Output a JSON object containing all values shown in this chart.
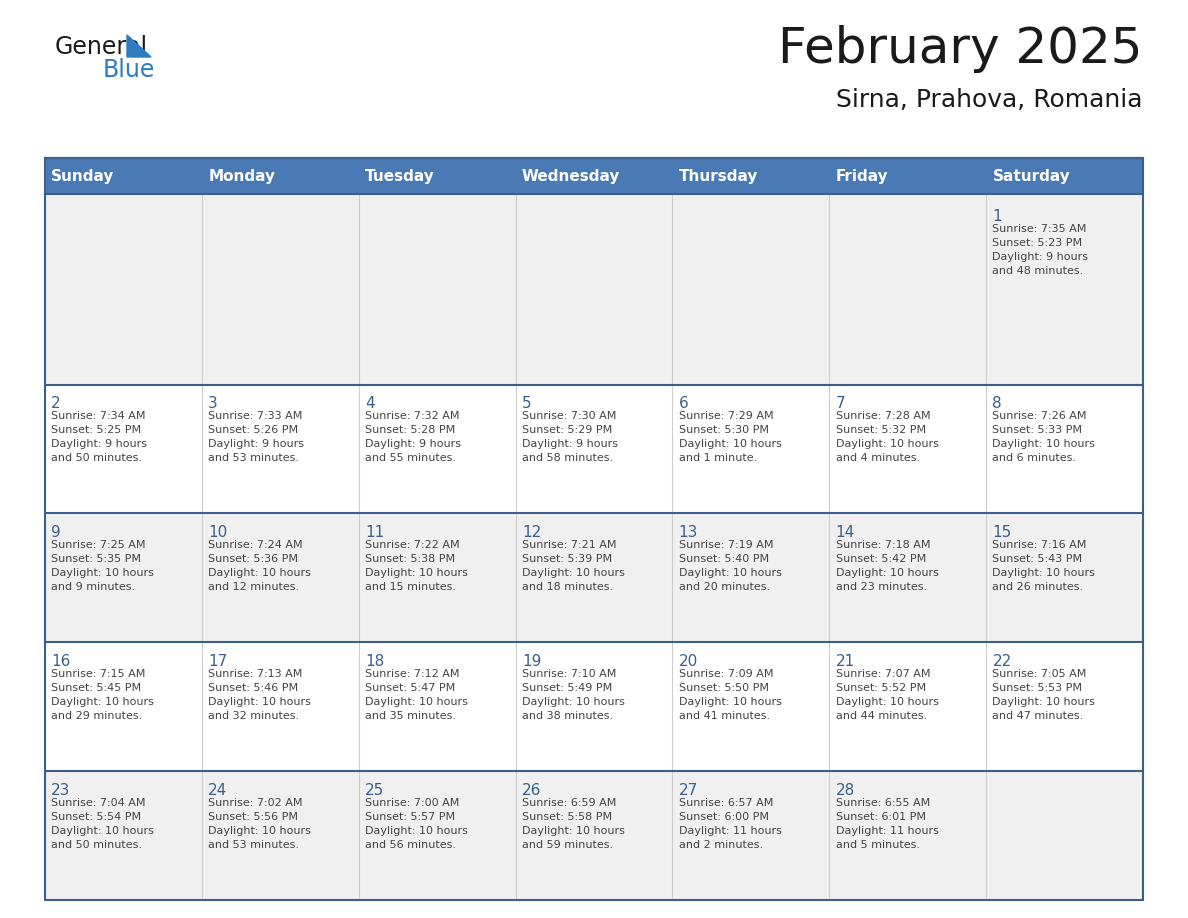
{
  "title": "February 2025",
  "subtitle": "Sirna, Prahova, Romania",
  "days_of_week": [
    "Sunday",
    "Monday",
    "Tuesday",
    "Wednesday",
    "Thursday",
    "Friday",
    "Saturday"
  ],
  "header_bg": "#4a7ab5",
  "header_text_color": "#ffffff",
  "cell_bg_odd": "#f0f0f0",
  "cell_bg_even": "#ffffff",
  "border_color": "#3a5f8a",
  "day_number_color": "#3a5f8a",
  "text_color": "#444444",
  "title_color": "#1a1a1a",
  "logo_general_color": "#1a1a1a",
  "logo_blue_color": "#2d7cc1",
  "calendar_data": [
    {
      "day": 1,
      "row": 0,
      "col": 6,
      "sunrise": "7:35 AM",
      "sunset": "5:23 PM",
      "daylight": "9 hours and 48 minutes."
    },
    {
      "day": 2,
      "row": 1,
      "col": 0,
      "sunrise": "7:34 AM",
      "sunset": "5:25 PM",
      "daylight": "9 hours and 50 minutes."
    },
    {
      "day": 3,
      "row": 1,
      "col": 1,
      "sunrise": "7:33 AM",
      "sunset": "5:26 PM",
      "daylight": "9 hours and 53 minutes."
    },
    {
      "day": 4,
      "row": 1,
      "col": 2,
      "sunrise": "7:32 AM",
      "sunset": "5:28 PM",
      "daylight": "9 hours and 55 minutes."
    },
    {
      "day": 5,
      "row": 1,
      "col": 3,
      "sunrise": "7:30 AM",
      "sunset": "5:29 PM",
      "daylight": "9 hours and 58 minutes."
    },
    {
      "day": 6,
      "row": 1,
      "col": 4,
      "sunrise": "7:29 AM",
      "sunset": "5:30 PM",
      "daylight": "10 hours and 1 minute."
    },
    {
      "day": 7,
      "row": 1,
      "col": 5,
      "sunrise": "7:28 AM",
      "sunset": "5:32 PM",
      "daylight": "10 hours and 4 minutes."
    },
    {
      "day": 8,
      "row": 1,
      "col": 6,
      "sunrise": "7:26 AM",
      "sunset": "5:33 PM",
      "daylight": "10 hours and 6 minutes."
    },
    {
      "day": 9,
      "row": 2,
      "col": 0,
      "sunrise": "7:25 AM",
      "sunset": "5:35 PM",
      "daylight": "10 hours and 9 minutes."
    },
    {
      "day": 10,
      "row": 2,
      "col": 1,
      "sunrise": "7:24 AM",
      "sunset": "5:36 PM",
      "daylight": "10 hours and 12 minutes."
    },
    {
      "day": 11,
      "row": 2,
      "col": 2,
      "sunrise": "7:22 AM",
      "sunset": "5:38 PM",
      "daylight": "10 hours and 15 minutes."
    },
    {
      "day": 12,
      "row": 2,
      "col": 3,
      "sunrise": "7:21 AM",
      "sunset": "5:39 PM",
      "daylight": "10 hours and 18 minutes."
    },
    {
      "day": 13,
      "row": 2,
      "col": 4,
      "sunrise": "7:19 AM",
      "sunset": "5:40 PM",
      "daylight": "10 hours and 20 minutes."
    },
    {
      "day": 14,
      "row": 2,
      "col": 5,
      "sunrise": "7:18 AM",
      "sunset": "5:42 PM",
      "daylight": "10 hours and 23 minutes."
    },
    {
      "day": 15,
      "row": 2,
      "col": 6,
      "sunrise": "7:16 AM",
      "sunset": "5:43 PM",
      "daylight": "10 hours and 26 minutes."
    },
    {
      "day": 16,
      "row": 3,
      "col": 0,
      "sunrise": "7:15 AM",
      "sunset": "5:45 PM",
      "daylight": "10 hours and 29 minutes."
    },
    {
      "day": 17,
      "row": 3,
      "col": 1,
      "sunrise": "7:13 AM",
      "sunset": "5:46 PM",
      "daylight": "10 hours and 32 minutes."
    },
    {
      "day": 18,
      "row": 3,
      "col": 2,
      "sunrise": "7:12 AM",
      "sunset": "5:47 PM",
      "daylight": "10 hours and 35 minutes."
    },
    {
      "day": 19,
      "row": 3,
      "col": 3,
      "sunrise": "7:10 AM",
      "sunset": "5:49 PM",
      "daylight": "10 hours and 38 minutes."
    },
    {
      "day": 20,
      "row": 3,
      "col": 4,
      "sunrise": "7:09 AM",
      "sunset": "5:50 PM",
      "daylight": "10 hours and 41 minutes."
    },
    {
      "day": 21,
      "row": 3,
      "col": 5,
      "sunrise": "7:07 AM",
      "sunset": "5:52 PM",
      "daylight": "10 hours and 44 minutes."
    },
    {
      "day": 22,
      "row": 3,
      "col": 6,
      "sunrise": "7:05 AM",
      "sunset": "5:53 PM",
      "daylight": "10 hours and 47 minutes."
    },
    {
      "day": 23,
      "row": 4,
      "col": 0,
      "sunrise": "7:04 AM",
      "sunset": "5:54 PM",
      "daylight": "10 hours and 50 minutes."
    },
    {
      "day": 24,
      "row": 4,
      "col": 1,
      "sunrise": "7:02 AM",
      "sunset": "5:56 PM",
      "daylight": "10 hours and 53 minutes."
    },
    {
      "day": 25,
      "row": 4,
      "col": 2,
      "sunrise": "7:00 AM",
      "sunset": "5:57 PM",
      "daylight": "10 hours and 56 minutes."
    },
    {
      "day": 26,
      "row": 4,
      "col": 3,
      "sunrise": "6:59 AM",
      "sunset": "5:58 PM",
      "daylight": "10 hours and 59 minutes."
    },
    {
      "day": 27,
      "row": 4,
      "col": 4,
      "sunrise": "6:57 AM",
      "sunset": "6:00 PM",
      "daylight": "11 hours and 2 minutes."
    },
    {
      "day": 28,
      "row": 4,
      "col": 5,
      "sunrise": "6:55 AM",
      "sunset": "6:01 PM",
      "daylight": "11 hours and 5 minutes."
    }
  ]
}
